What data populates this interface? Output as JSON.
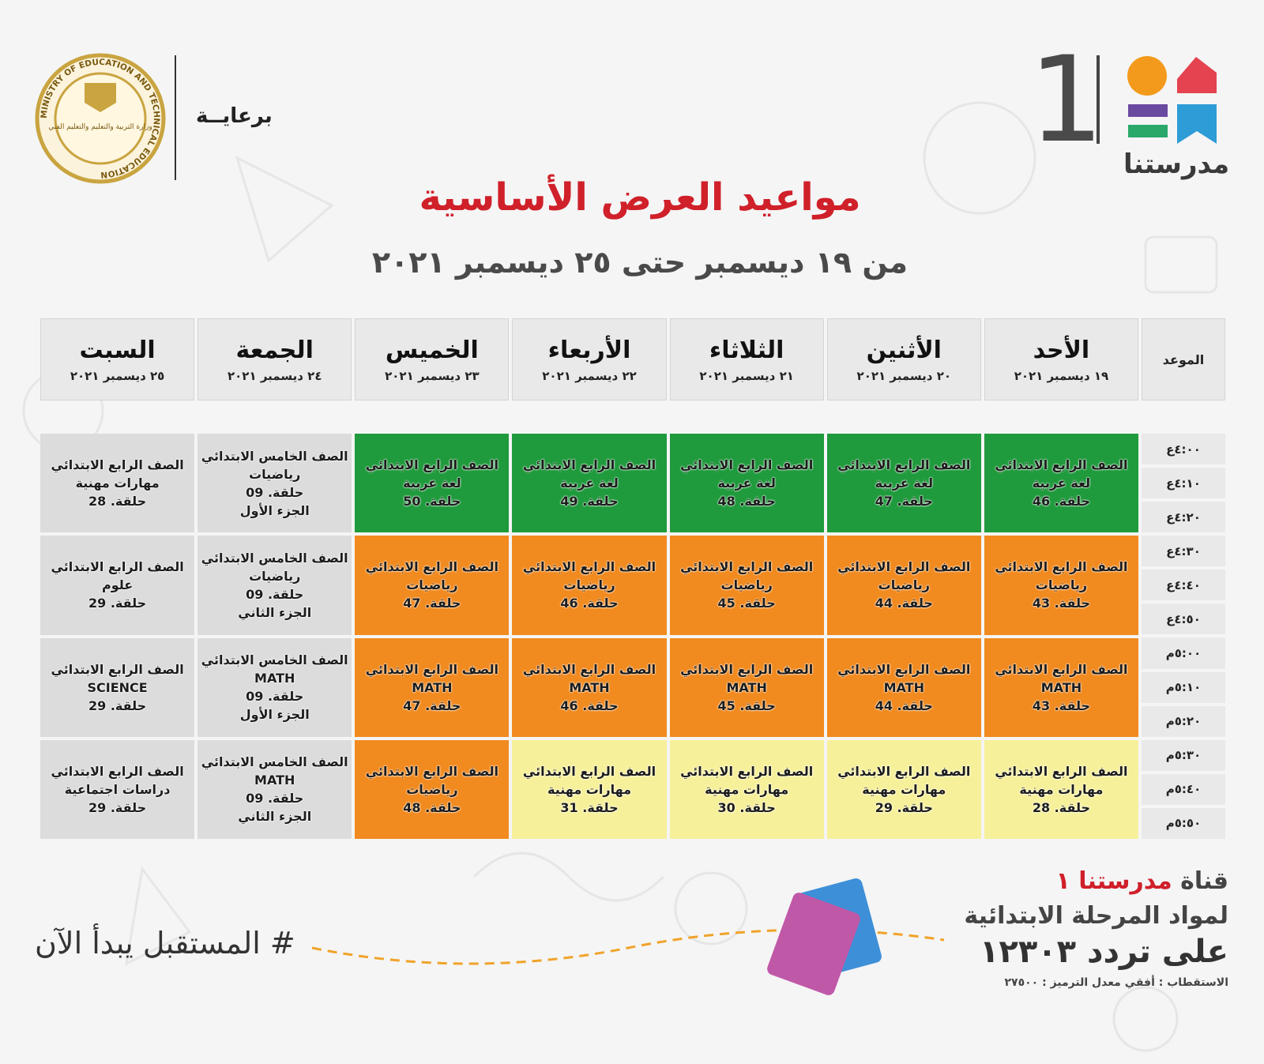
{
  "header": {
    "sponsor": "برعايــة",
    "ministry_seal": "MINISTRY OF EDUCATION AND TECHNICAL EDUCATION",
    "ministry_arabic": "وزارة التربية والتعليم والتعليم الفني",
    "logo_name": "مدرستنا",
    "logo_number": "1",
    "title": "مواعيد العرض الأساسية",
    "subtitle": "من ١٩ ديسمبر حتى ٢٥ ديسمبر ٢٠٢١"
  },
  "table": {
    "time_header": "الموعد",
    "days": [
      {
        "name": "الأحد",
        "date": "١٩ ديسمبر ٢٠٢١"
      },
      {
        "name": "الأثنين",
        "date": "٢٠ ديسمبر ٢٠٢١"
      },
      {
        "name": "الثلاثاء",
        "date": "٢١ ديسمبر ٢٠٢١"
      },
      {
        "name": "الأربعاء",
        "date": "٢٢ ديسمبر ٢٠٢١"
      },
      {
        "name": "الخميس",
        "date": "٢٣ ديسمبر ٢٠٢١"
      },
      {
        "name": "الجمعة",
        "date": "٢٤ ديسمبر ٢٠٢١"
      },
      {
        "name": "السبت",
        "date": "٢٥ ديسمبر ٢٠٢١"
      }
    ],
    "times": [
      "٤:٠٠ع",
      "٤:١٠ع",
      "٤:٢٠ع",
      "٤:٣٠ع",
      "٤:٤٠ع",
      "٤:٥٠ع",
      "٥:٠٠م",
      "٥:١٠م",
      "٥:٢٠م",
      "٥:٣٠م",
      "٥:٤٠م",
      "٥:٥٠م"
    ],
    "rows": [
      [
        {
          "color": "#1f9a3c",
          "lines": [
            "الصف الرابع الابتدائي",
            "لغة عربية",
            "حلقة. 46"
          ]
        },
        {
          "color": "#1f9a3c",
          "lines": [
            "الصف الرابع الابتدائي",
            "لغة عربية",
            "حلقة. 47"
          ]
        },
        {
          "color": "#1f9a3c",
          "lines": [
            "الصف الرابع الابتدائي",
            "لغة عربية",
            "حلقة. 48"
          ]
        },
        {
          "color": "#1f9a3c",
          "lines": [
            "الصف الرابع الابتدائي",
            "لغة عربية",
            "حلقة. 49"
          ]
        },
        {
          "color": "#1f9a3c",
          "lines": [
            "الصف الرابع الابتدائي",
            "لغة عربية",
            "حلقة. 50"
          ]
        },
        {
          "color": "#dcdcdc",
          "lines": [
            "الصف الخامس الابتدائي",
            "رياضيات",
            "حلقة. 09",
            "الجزء الأول"
          ]
        },
        {
          "color": "#dcdcdc",
          "lines": [
            "الصف الرابع الابتدائي",
            "مهارات مهنية",
            "حلقة. 28"
          ]
        }
      ],
      [
        {
          "color": "#f18a1f",
          "lines": [
            "الصف الرابع الابتدائي",
            "رياضيات",
            "حلقة. 43"
          ]
        },
        {
          "color": "#f18a1f",
          "lines": [
            "الصف الرابع الابتدائي",
            "رياضيات",
            "حلقة. 44"
          ]
        },
        {
          "color": "#f18a1f",
          "lines": [
            "الصف الرابع الابتدائي",
            "رياضيات",
            "حلقة. 45"
          ]
        },
        {
          "color": "#f18a1f",
          "lines": [
            "الصف الرابع الابتدائي",
            "رياضيات",
            "حلقة. 46"
          ]
        },
        {
          "color": "#f18a1f",
          "lines": [
            "الصف الرابع الابتدائي",
            "رياضيات",
            "حلقة. 47"
          ]
        },
        {
          "color": "#dcdcdc",
          "lines": [
            "الصف الخامس الابتدائي",
            "رياضيات",
            "حلقة. 09",
            "الجزء الثاني"
          ]
        },
        {
          "color": "#dcdcdc",
          "lines": [
            "الصف الرابع الابتدائي",
            "علوم",
            "حلقة. 29"
          ]
        }
      ],
      [
        {
          "color": "#f18a1f",
          "lines": [
            "الصف الرابع الابتدائي",
            "MATH",
            "حلقة. 43"
          ]
        },
        {
          "color": "#f18a1f",
          "lines": [
            "الصف الرابع الابتدائي",
            "MATH",
            "حلقة. 44"
          ]
        },
        {
          "color": "#f18a1f",
          "lines": [
            "الصف الرابع الابتدائي",
            "MATH",
            "حلقة. 45"
          ]
        },
        {
          "color": "#f18a1f",
          "lines": [
            "الصف الرابع الابتدائي",
            "MATH",
            "حلقة. 46"
          ]
        },
        {
          "color": "#f18a1f",
          "lines": [
            "الصف الرابع الابتدائي",
            "MATH",
            "حلقة. 47"
          ]
        },
        {
          "color": "#dcdcdc",
          "lines": [
            "الصف الخامس الابتدائي",
            "MATH",
            "حلقة. 09",
            "الجزء الأول"
          ]
        },
        {
          "color": "#dcdcdc",
          "lines": [
            "الصف الرابع الابتدائي",
            "SCIENCE",
            "حلقة. 29"
          ]
        }
      ],
      [
        {
          "color": "#f7f09b",
          "lines": [
            "الصف الرابع الابتدائي",
            "مهارات مهنية",
            "حلقة. 28"
          ]
        },
        {
          "color": "#f7f09b",
          "lines": [
            "الصف الرابع الابتدائي",
            "مهارات مهنية",
            "حلقة. 29"
          ]
        },
        {
          "color": "#f7f09b",
          "lines": [
            "الصف الرابع الابتدائي",
            "مهارات مهنية",
            "حلقة. 30"
          ]
        },
        {
          "color": "#f7f09b",
          "lines": [
            "الصف الرابع الابتدائي",
            "مهارات مهنية",
            "حلقة. 31"
          ]
        },
        {
          "color": "#f18a1f",
          "lines": [
            "الصف الرابع الابتدائي",
            "رياضيات",
            "حلقة. 48"
          ]
        },
        {
          "color": "#dcdcdc",
          "lines": [
            "الصف الخامس الابتدائي",
            "MATH",
            "حلقة. 09",
            "الجزء الثاني"
          ]
        },
        {
          "color": "#dcdcdc",
          "lines": [
            "الصف الرابع الابتدائي",
            "دراسات اجتماعية",
            "حلقة. 29"
          ]
        }
      ]
    ]
  },
  "footer": {
    "hashtag": "# المستقبل يبدأ الآن",
    "channel_prefix": "قناة",
    "channel_name": "مدرستنا ١",
    "channel_subjects": "لمواد المرحلة الابتدائية",
    "frequency": "على تردد ١٢٣٠٣",
    "technical": "الاستقطاب : أفقي معدل الترميز : ٢٧٥٠٠"
  }
}
